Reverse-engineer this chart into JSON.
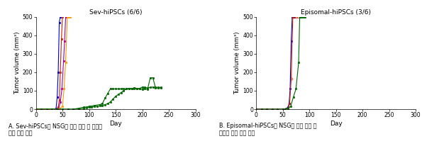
{
  "left_title": "Sev-hiPSCs (6/6)",
  "right_title": "Episomal-hiPSCs (3/6)",
  "ylabel": "Tumor volume (mm³)",
  "xlabel": "Day",
  "xlim": [
    0,
    300
  ],
  "ylim": [
    0,
    500
  ],
  "xticks": [
    0,
    50,
    100,
    150,
    200,
    250,
    300
  ],
  "yticks": [
    0,
    100,
    200,
    300,
    400,
    500
  ],
  "caption_left": "A. Sev-hiPSCs를 NSG에 피하 투여 후 발생한\n종양 증식 속도",
  "caption_right": "B. Episomal-hiPSCs를 NSG에 피하 투여 후\n발생한 종양 증식 속도",
  "left_series": [
    {
      "color": "#0000cc",
      "marker": "s",
      "x": [
        0,
        5,
        10,
        15,
        20,
        25,
        30,
        35,
        38,
        40,
        42,
        44,
        46
      ],
      "y": [
        0,
        0,
        0,
        0,
        0,
        0,
        0,
        0,
        5,
        65,
        200,
        470,
        500
      ]
    },
    {
      "color": "#cc2200",
      "marker": "s",
      "x": [
        0,
        5,
        10,
        15,
        20,
        25,
        30,
        35,
        40,
        42,
        44,
        46,
        48,
        50
      ],
      "y": [
        0,
        0,
        0,
        0,
        0,
        0,
        0,
        0,
        2,
        10,
        50,
        200,
        380,
        500
      ]
    },
    {
      "color": "#aa00aa",
      "marker": "s",
      "x": [
        0,
        5,
        10,
        15,
        20,
        25,
        30,
        35,
        40,
        43,
        46,
        49,
        52,
        54,
        56
      ],
      "y": [
        0,
        0,
        0,
        0,
        0,
        0,
        0,
        0,
        2,
        5,
        40,
        110,
        260,
        370,
        500
      ]
    },
    {
      "color": "#ff9900",
      "marker": "s",
      "x": [
        0,
        5,
        10,
        15,
        20,
        25,
        30,
        35,
        40,
        45,
        50,
        53,
        56,
        59,
        62,
        65
      ],
      "y": [
        0,
        0,
        0,
        0,
        0,
        0,
        0,
        0,
        2,
        5,
        15,
        110,
        255,
        500,
        500,
        500
      ]
    },
    {
      "color": "#006600",
      "marker": "s",
      "x": [
        0,
        10,
        20,
        30,
        40,
        50,
        60,
        70,
        80,
        90,
        100,
        110,
        120,
        125,
        130,
        135,
        140,
        145,
        150,
        155,
        160,
        165,
        170,
        175,
        180,
        185,
        190,
        195,
        200,
        205,
        210,
        215,
        220,
        225,
        230,
        235
      ],
      "y": [
        0,
        0,
        0,
        0,
        0,
        0,
        0,
        0,
        5,
        10,
        15,
        20,
        25,
        30,
        60,
        85,
        110,
        110,
        110,
        110,
        110,
        110,
        110,
        110,
        110,
        110,
        110,
        110,
        108,
        110,
        108,
        170,
        170,
        115,
        115,
        115
      ]
    },
    {
      "color": "#006600",
      "marker": "s",
      "x": [
        0,
        10,
        20,
        30,
        40,
        50,
        60,
        70,
        80,
        90,
        95,
        100,
        105,
        110,
        115,
        120,
        125,
        130,
        135,
        140,
        145,
        150,
        155,
        160,
        165,
        170,
        175,
        180,
        185,
        190,
        195,
        200,
        205,
        210,
        215,
        220,
        225,
        230,
        235
      ],
      "y": [
        0,
        0,
        0,
        0,
        0,
        0,
        0,
        0,
        2,
        5,
        8,
        10,
        12,
        14,
        16,
        18,
        20,
        25,
        30,
        40,
        55,
        70,
        80,
        90,
        100,
        110,
        113,
        112,
        115,
        113,
        112,
        120,
        118,
        115,
        118,
        120,
        118,
        118,
        118
      ]
    }
  ],
  "right_series": [
    {
      "color": "#0000cc",
      "marker": "s",
      "filled": true,
      "x": [
        0,
        10,
        20,
        30,
        40,
        50,
        55,
        60,
        62,
        64,
        66,
        68,
        70,
        72
      ],
      "y": [
        0,
        0,
        0,
        0,
        0,
        0,
        2,
        10,
        30,
        110,
        370,
        500,
        500,
        500
      ]
    },
    {
      "color": "#cc2200",
      "marker": "o",
      "filled": false,
      "x": [
        0,
        10,
        20,
        30,
        40,
        50,
        55,
        60,
        63,
        66,
        69,
        72,
        75,
        78
      ],
      "y": [
        0,
        0,
        0,
        0,
        0,
        0,
        2,
        5,
        30,
        165,
        500,
        500,
        500,
        500
      ]
    },
    {
      "color": "#006600",
      "marker": "s",
      "filled": true,
      "x": [
        0,
        10,
        20,
        30,
        40,
        50,
        55,
        60,
        65,
        70,
        75,
        80,
        82,
        84,
        86,
        88,
        90,
        92
      ],
      "y": [
        0,
        0,
        0,
        0,
        0,
        0,
        2,
        5,
        15,
        65,
        110,
        255,
        500,
        500,
        500,
        500,
        500,
        500
      ]
    }
  ]
}
